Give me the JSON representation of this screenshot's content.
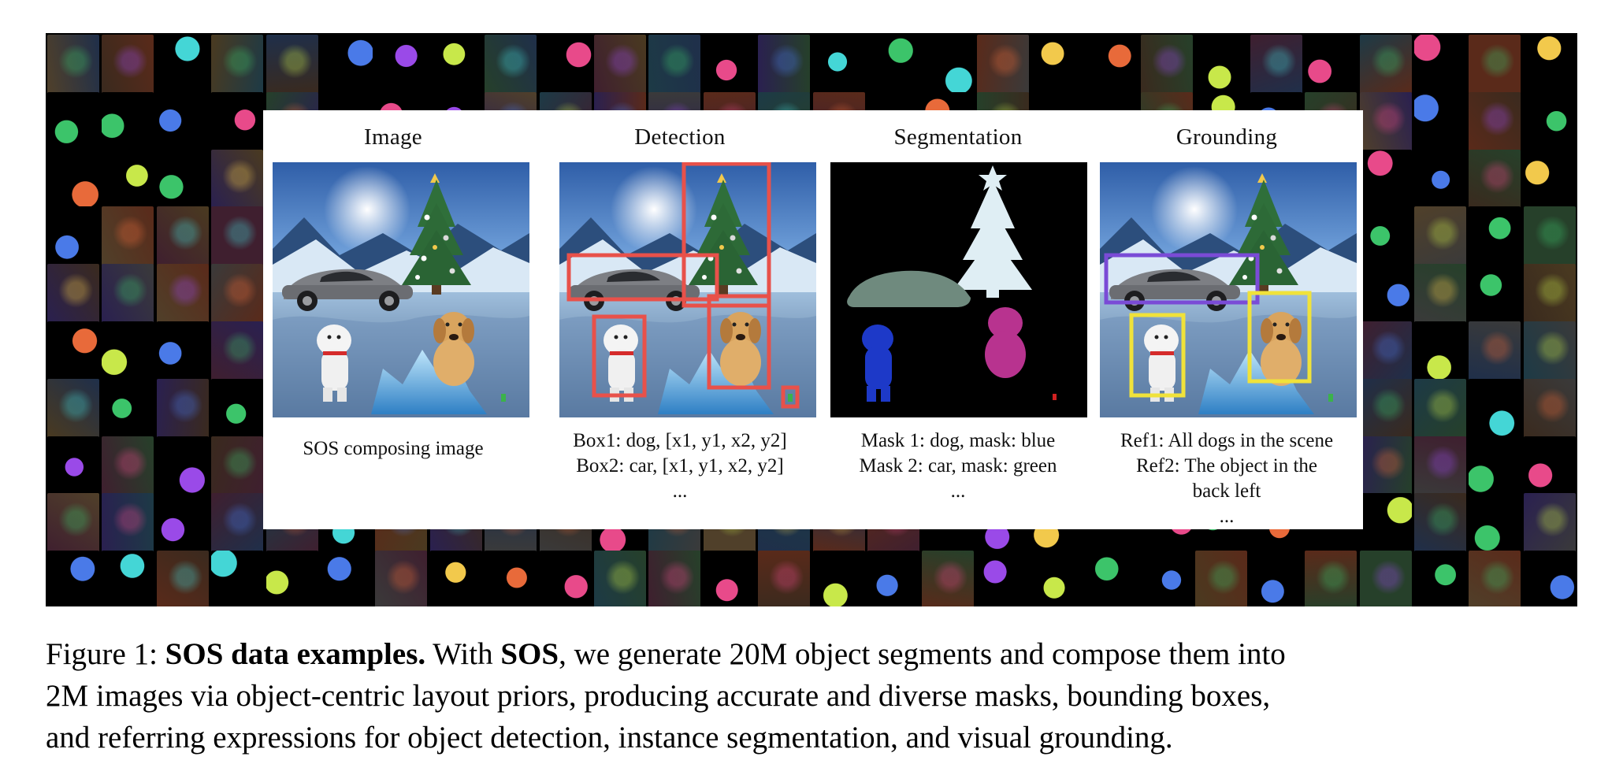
{
  "panels": [
    {
      "title": "Image",
      "caption_lines": [
        "SOS composing image"
      ]
    },
    {
      "title": "Detection",
      "caption_lines": [
        "Box1: dog, [x1, y1, x2, y2]",
        "Box2: car, [x1, y1, x2, y2]",
        "..."
      ]
    },
    {
      "title": "Segmentation",
      "caption_lines": [
        "Mask 1: dog, mask: blue",
        "Mask 2: car, mask: green",
        "..."
      ]
    },
    {
      "title": "Grounding",
      "caption_lines": [
        "Ref1: All dogs in the scene",
        "Ref2: The object in the",
        "back left",
        "..."
      ]
    }
  ],
  "colors": {
    "detection_box": "#e8514a",
    "grounding_car_box": "#7a4bd6",
    "grounding_dog_box": "#f0e23a",
    "mask_car": "#6f8a7e",
    "mask_tree": "#dfeef4",
    "mask_dog_blue": "#1d39c8",
    "mask_dog_magenta": "#b8338f"
  },
  "figure_caption": {
    "label": "Figure 1:",
    "bold_title": "SOS data examples.",
    "text_1": " With ",
    "bold_name": "SOS",
    "text_2": ", we generate 20M object segments and compose them into",
    "line_2": "2M images via object-centric layout priors, producing accurate and diverse masks, bounding boxes,",
    "line_3": "and referring expressions for object detection, instance segmentation, and visual grounding."
  }
}
